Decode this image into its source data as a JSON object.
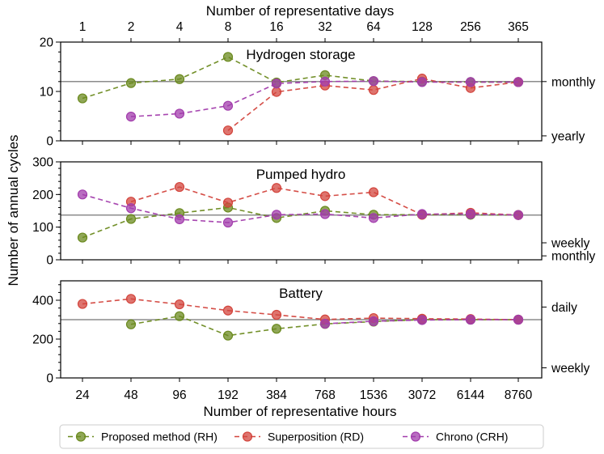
{
  "chart_data": {
    "type": "line",
    "top_xlabel": "Number of representative days",
    "top_ticks": [
      "1",
      "2",
      "4",
      "8",
      "16",
      "32",
      "64",
      "128",
      "256",
      "365"
    ],
    "xlabel": "Number of representative hours",
    "categories": [
      "24",
      "48",
      "96",
      "192",
      "384",
      "768",
      "1536",
      "3072",
      "6144",
      "8760"
    ],
    "ylabel": "Number of annual cycles",
    "legend": [
      {
        "name": "Proposed method (RH)",
        "color": "#6b8a1f"
      },
      {
        "name": "Superposition (RD)",
        "color": "#d3453d"
      },
      {
        "name": "Chrono (CRH)",
        "color": "#a23cac"
      }
    ],
    "panels": [
      {
        "title": "Hydrogen storage",
        "ylim": [
          0,
          20
        ],
        "yticks": [
          0,
          10,
          20
        ],
        "minor_step": 2,
        "ref_line": 12,
        "right_labels": [
          {
            "text": "monthly",
            "value": 12
          },
          {
            "text": "yearly",
            "value": 1
          }
        ],
        "series": [
          {
            "name": "Proposed method (RH)",
            "values": [
              8.6,
              11.7,
              12.5,
              17,
              11.8,
              13.3,
              12.1,
              12,
              11.9,
              11.9
            ]
          },
          {
            "name": "Superposition (RD)",
            "values": [
              null,
              null,
              null,
              2.1,
              9.9,
              11.2,
              10.3,
              12.6,
              10.7,
              11.9
            ]
          },
          {
            "name": "Chrono (CRH)",
            "values": [
              null,
              4.9,
              5.5,
              7.1,
              11.6,
              12.0,
              12.1,
              11.9,
              11.9,
              11.9
            ]
          }
        ]
      },
      {
        "title": "Pumped hydro",
        "ylim": [
          0,
          300
        ],
        "yticks": [
          0,
          100,
          200,
          300
        ],
        "minor_step": 20,
        "ref_line": 137,
        "right_labels": [
          {
            "text": "weekly",
            "value": 52
          },
          {
            "text": "monthly",
            "value": 12
          }
        ],
        "series": [
          {
            "name": "Proposed method (RH)",
            "values": [
              68,
              125,
              143,
              160,
              128,
              150,
              138,
              138,
              138,
              137
            ]
          },
          {
            "name": "Superposition (RD)",
            "values": [
              null,
              178,
              223,
              175,
              220,
              195,
              207,
              138,
              144,
              137
            ]
          },
          {
            "name": "Chrono (CRH)",
            "values": [
              200,
              158,
              124,
              114,
              138,
              140,
              128,
              140,
              140,
              137
            ]
          }
        ]
      },
      {
        "title": "Battery",
        "ylim": [
          0,
          500
        ],
        "yticks": [
          0,
          200,
          400
        ],
        "minor_step": 40,
        "ref_line": 300,
        "right_labels": [
          {
            "text": "daily",
            "value": 365
          },
          {
            "text": "weekly",
            "value": 52
          }
        ],
        "series": [
          {
            "name": "Proposed method (RH)",
            "values": [
              null,
              276,
              318,
              218,
              253,
              278,
              290,
              300,
              300,
              300
            ]
          },
          {
            "name": "Superposition (RD)",
            "values": [
              381,
              407,
              379,
              347,
              325,
              301,
              308,
              305,
              303,
              300
            ]
          },
          {
            "name": "Chrono (CRH)",
            "values": [
              null,
              null,
              null,
              null,
              null,
              279,
              292,
              298,
              300,
              300
            ]
          }
        ]
      }
    ]
  }
}
